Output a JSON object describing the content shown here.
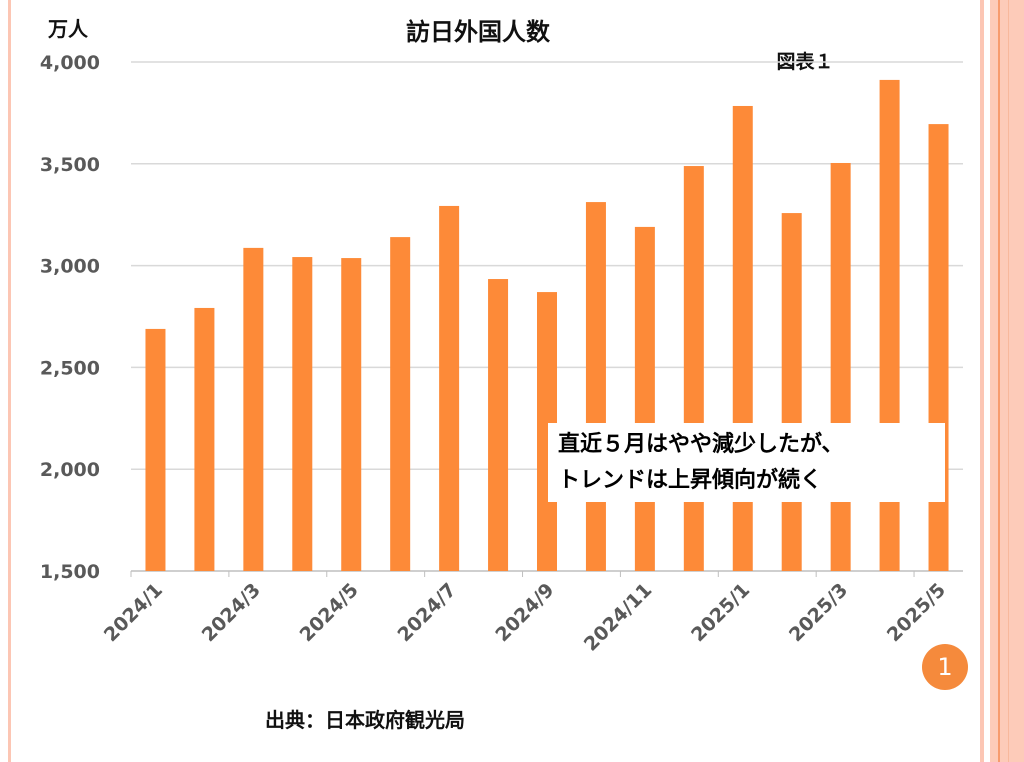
{
  "chart_data": {
    "type": "bar",
    "title": "訪日外国人数",
    "ylabel": "万人",
    "figure_label": "図表１",
    "source": "出典：日本政府観光局",
    "annotation": [
      "直近５月はやや減少したが、",
      "トレンドは上昇傾向が続く"
    ],
    "page_badge": "1",
    "bar_color": "#fd8a38",
    "ylim": [
      1500,
      4000
    ],
    "yticks": [
      "1,500",
      "2,000",
      "2,500",
      "3,000",
      "3,500",
      "4,000"
    ],
    "ytick_values": [
      1500,
      2000,
      2500,
      3000,
      3500,
      4000
    ],
    "grid": true,
    "categories": [
      "2024/1",
      "2024/2",
      "2024/3",
      "2024/4",
      "2024/5",
      "2024/6",
      "2024/7",
      "2024/8",
      "2024/9",
      "2024/10",
      "2024/11",
      "2024/12",
      "2025/1",
      "2025/2",
      "2025/3",
      "2025/4",
      "2025/5"
    ],
    "xtick_labels": [
      "2024/1",
      "",
      "2024/3",
      "",
      "2024/5",
      "",
      "2024/7",
      "",
      "2024/9",
      "",
      "2024/11",
      "",
      "2025/1",
      "",
      "2025/3",
      "",
      "2025/5"
    ],
    "values": [
      2689,
      2792,
      3087,
      3042,
      3037,
      3140,
      3293,
      2934,
      2870,
      3312,
      3190,
      3489,
      3784,
      3258,
      3504,
      3912,
      3695
    ]
  }
}
